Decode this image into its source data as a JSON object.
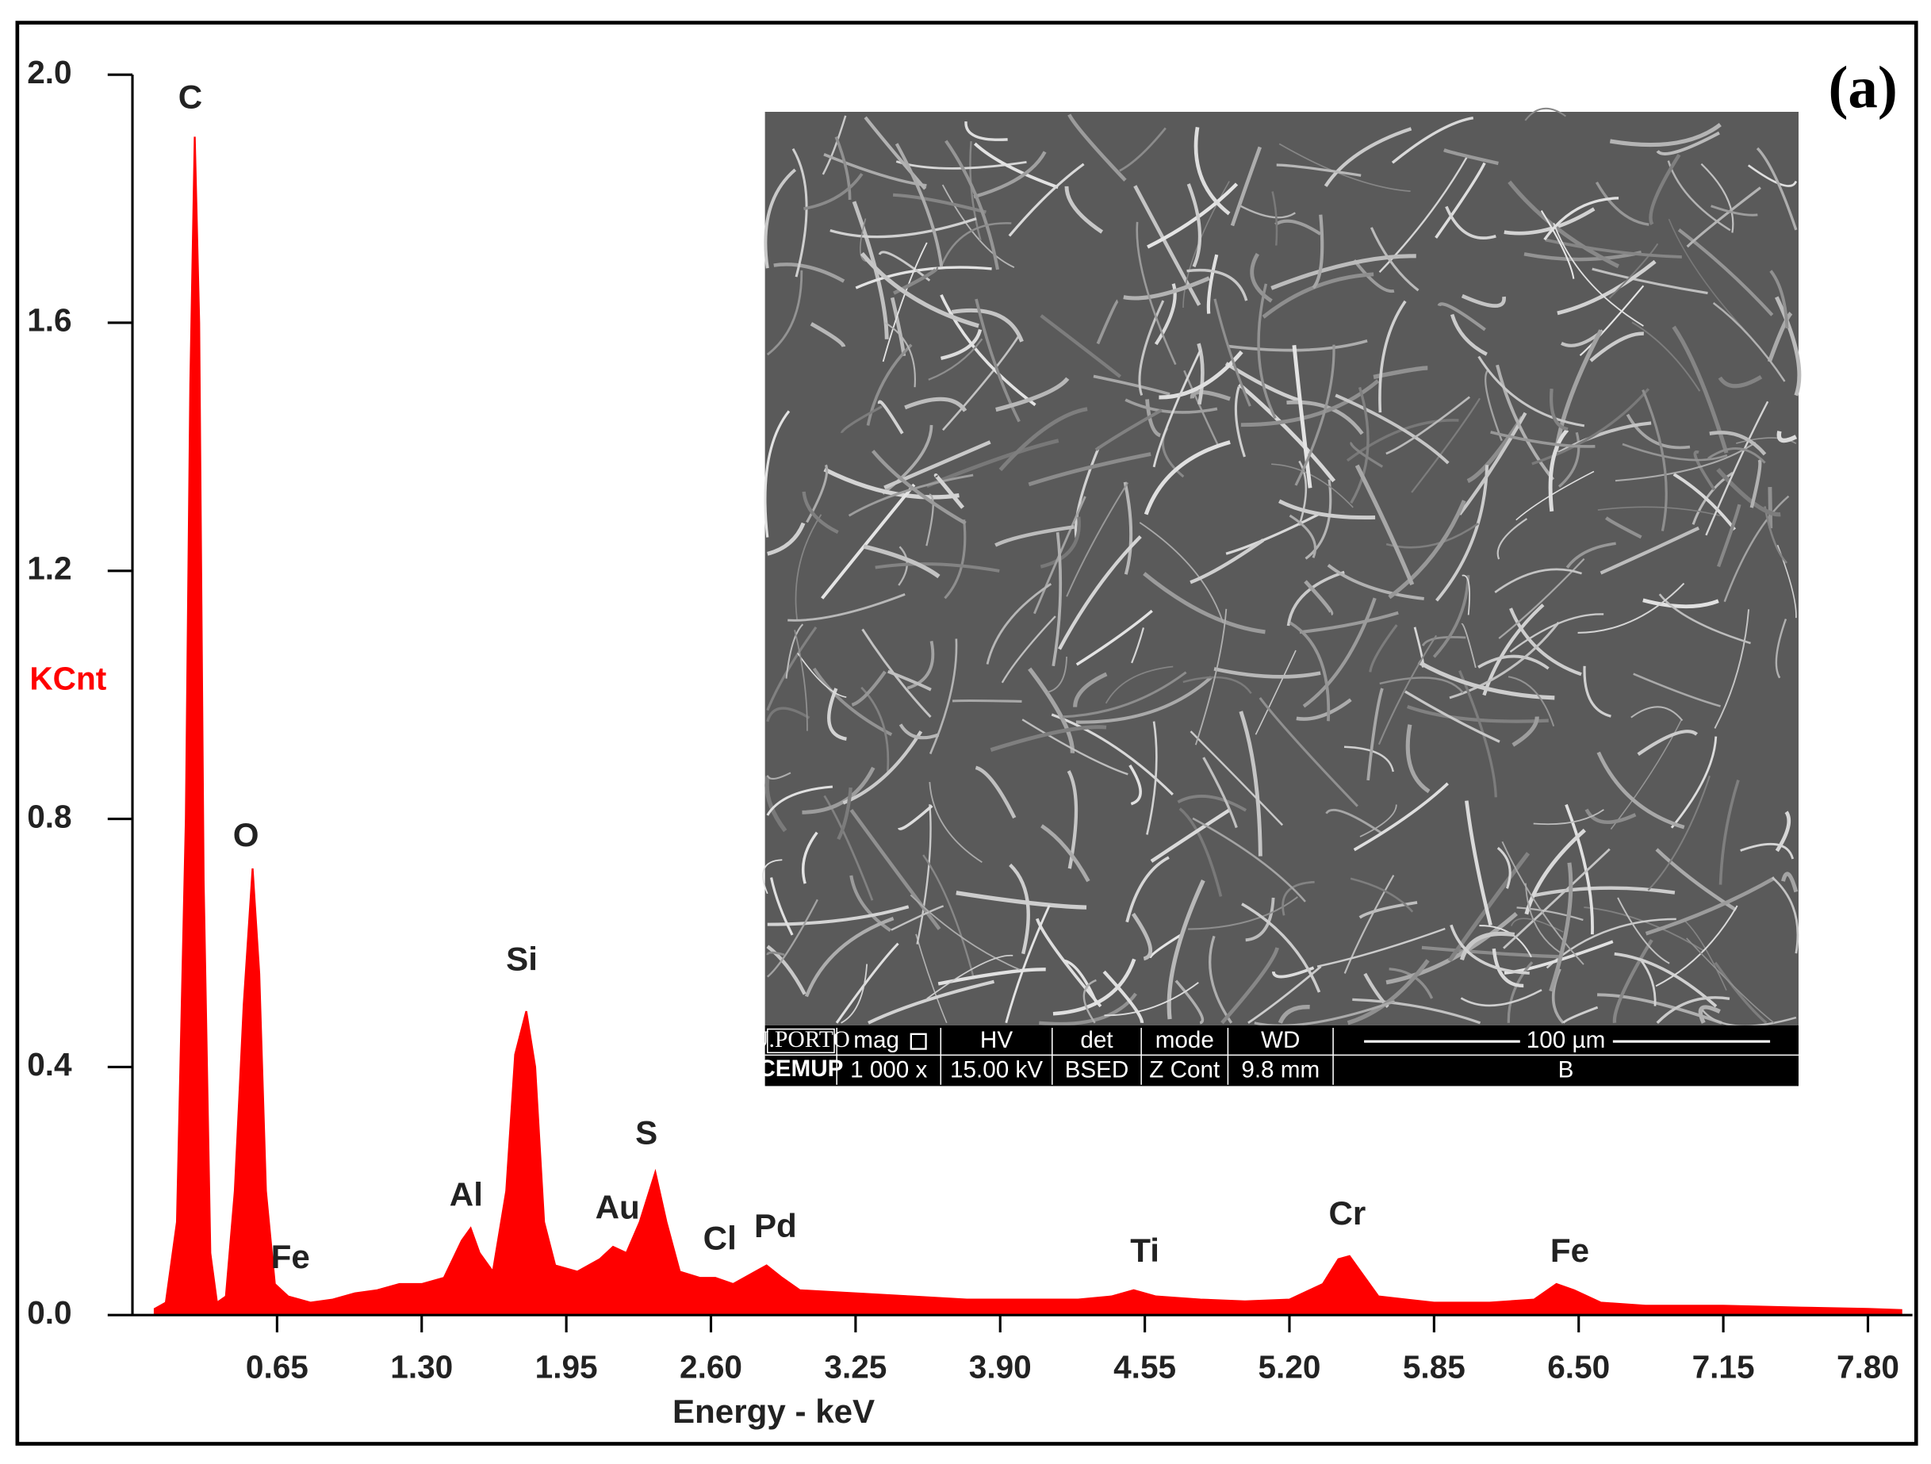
{
  "chart_data": {
    "type": "area",
    "panel_label": "(a)",
    "xlabel": "Energy - keV",
    "ylabel": "KCnt",
    "color": "#ff0000",
    "xlim": [
      0,
      8.0
    ],
    "ylim": [
      0,
      2.0
    ],
    "xticks": [
      0.65,
      {
        "value": 1.3,
        "label": "1.30"
      },
      1.95,
      {
        "value": 2.6,
        "label": "2.60"
      },
      3.25,
      {
        "value": 3.9,
        "label": "3.90"
      },
      4.55,
      {
        "value": 5.2,
        "label": "5.20"
      },
      5.85,
      {
        "value": 6.5,
        "label": "6.50"
      },
      7.15,
      {
        "value": 7.8,
        "label": "7.80"
      }
    ],
    "yticks": [
      {
        "value": 0,
        "label": "0.0"
      },
      0.4,
      0.8,
      1.2,
      1.6,
      {
        "value": 2,
        "label": "2.0"
      }
    ],
    "x": [
      0.1,
      0.15,
      0.2,
      0.24,
      0.26,
      0.28,
      0.3,
      0.32,
      0.35,
      0.38,
      0.42,
      0.46,
      0.5,
      0.54,
      0.57,
      0.6,
      0.64,
      0.7,
      0.8,
      0.9,
      1.0,
      1.1,
      1.2,
      1.3,
      1.4,
      1.48,
      1.52,
      1.56,
      1.62,
      1.68,
      1.72,
      1.77,
      1.81,
      1.85,
      1.9,
      2.0,
      2.1,
      2.16,
      2.22,
      2.28,
      2.35,
      2.4,
      2.46,
      2.55,
      2.62,
      2.7,
      2.8,
      2.85,
      2.92,
      3.0,
      3.25,
      3.5,
      3.75,
      4.0,
      4.25,
      4.4,
      4.5,
      4.6,
      4.8,
      5.0,
      5.2,
      5.35,
      5.42,
      5.47,
      5.52,
      5.6,
      5.85,
      6.1,
      6.3,
      6.4,
      6.48,
      6.6,
      6.8,
      7.15,
      7.5,
      7.8,
      7.95
    ],
    "values": [
      0.01,
      0.02,
      0.15,
      0.8,
      1.5,
      1.9,
      1.6,
      0.7,
      0.1,
      0.02,
      0.03,
      0.2,
      0.5,
      0.72,
      0.55,
      0.2,
      0.05,
      0.03,
      0.02,
      0.025,
      0.035,
      0.04,
      0.05,
      0.05,
      0.06,
      0.12,
      0.14,
      0.1,
      0.07,
      0.2,
      0.42,
      0.49,
      0.4,
      0.15,
      0.08,
      0.07,
      0.09,
      0.11,
      0.1,
      0.15,
      0.23,
      0.15,
      0.07,
      0.06,
      0.06,
      0.05,
      0.07,
      0.08,
      0.06,
      0.04,
      0.035,
      0.03,
      0.025,
      0.025,
      0.025,
      0.03,
      0.04,
      0.03,
      0.025,
      0.022,
      0.025,
      0.05,
      0.09,
      0.095,
      0.07,
      0.03,
      0.02,
      0.02,
      0.025,
      0.05,
      0.04,
      0.02,
      0.015,
      0.015,
      0.012,
      0.01,
      0.008
    ],
    "annotations": [
      {
        "text": "C",
        "x": 0.26,
        "y": 1.96
      },
      {
        "text": "O",
        "x": 0.51,
        "y": 0.77
      },
      {
        "text": "Fe",
        "x": 0.71,
        "y": 0.09
      },
      {
        "text": "Al",
        "x": 1.5,
        "y": 0.19
      },
      {
        "text": "Si",
        "x": 1.75,
        "y": 0.57
      },
      {
        "text": "Au",
        "x": 2.18,
        "y": 0.17
      },
      {
        "text": "S",
        "x": 2.31,
        "y": 0.29
      },
      {
        "text": "Cl",
        "x": 2.64,
        "y": 0.12
      },
      {
        "text": "Pd",
        "x": 2.89,
        "y": 0.14
      },
      {
        "text": "Ti",
        "x": 4.55,
        "y": 0.1
      },
      {
        "text": "Cr",
        "x": 5.46,
        "y": 0.16
      },
      {
        "text": "Fe",
        "x": 6.46,
        "y": 0.1
      }
    ]
  },
  "sem_inset": {
    "logo_top": "U.PORTO",
    "logo_bottom": "CEMUP",
    "fields": [
      {
        "label": "mag",
        "value": "1 000 x"
      },
      {
        "label": "HV",
        "value": "15.00 kV"
      },
      {
        "label": "det",
        "value": "BSED"
      },
      {
        "label": "mode",
        "value": "Z Cont"
      },
      {
        "label": "WD",
        "value": "9.8 mm"
      }
    ],
    "scale_bar": "100 µm",
    "scale_value": "B"
  }
}
